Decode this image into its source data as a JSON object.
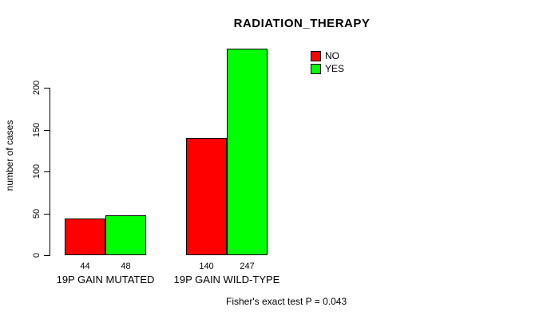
{
  "title": "RADIATION_THERAPY",
  "ylabel": "number of cases",
  "footer": "Fisher's exact test P = 0.043",
  "legend": {
    "items": [
      {
        "label": "NO",
        "color": "#ff0000"
      },
      {
        "label": "YES",
        "color": "#00ff00"
      }
    ]
  },
  "colors": {
    "no": "#ff0000",
    "yes": "#00ff00",
    "axis": "#000000",
    "background": "#ffffff"
  },
  "chart_data": {
    "type": "bar",
    "title": "RADIATION_THERAPY",
    "xlabel": "",
    "ylabel": "number of cases",
    "categories": [
      "19P GAIN MUTATED",
      "19P GAIN WILD-TYPE"
    ],
    "series": [
      {
        "name": "NO",
        "color": "#ff0000",
        "values": [
          44,
          140
        ]
      },
      {
        "name": "YES",
        "color": "#00ff00",
        "values": [
          48,
          247
        ]
      }
    ],
    "bar_value_labels": [
      [
        "44",
        "48"
      ],
      [
        "140",
        "247"
      ]
    ],
    "yticks": [
      0,
      50,
      100,
      150,
      200
    ],
    "ylim": [
      0,
      260
    ],
    "grid": false,
    "legend_position": "top-right",
    "annotation": "Fisher's exact test P = 0.043"
  }
}
